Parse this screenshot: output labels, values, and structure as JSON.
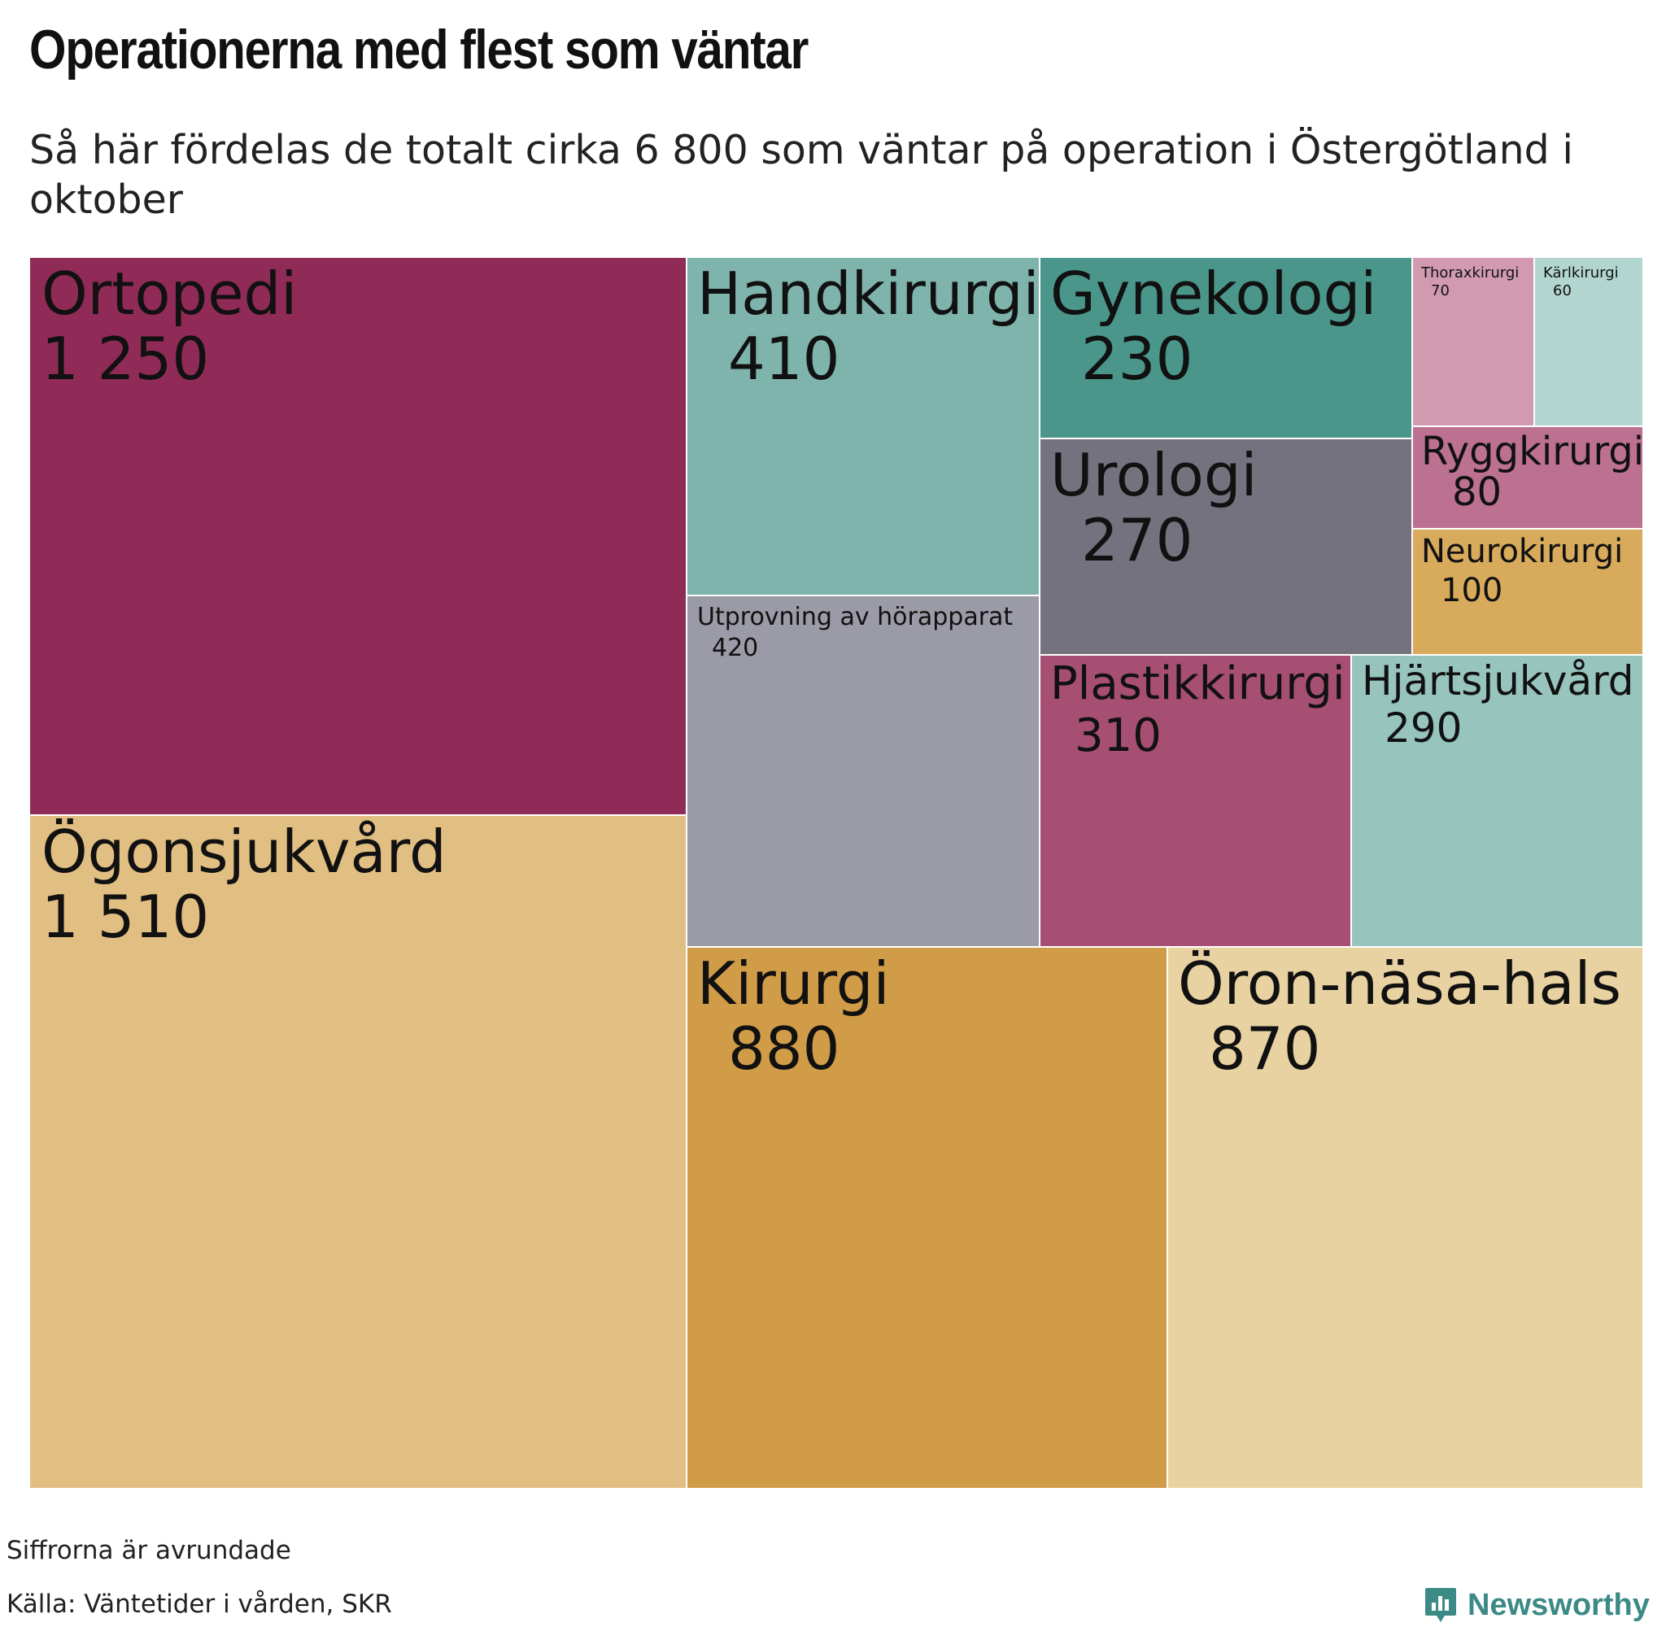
{
  "title": "Operationerna med flest som väntar",
  "subtitle": "Så här fördelas de totalt cirka 6 800 som väntar på operation i Östergötland i oktober",
  "footer": {
    "note": "Siffrorna är avrundade",
    "source": "Källa: Väntetider i vården, SKR",
    "brand": "Newsworthy"
  },
  "chart_data": {
    "type": "treemap",
    "title": "Operationerna med flest som väntar",
    "subtitle": "Så här fördelas de totalt cirka 6 800 som väntar på operation i Östergötland i oktober",
    "cells": [
      {
        "name": "Ortopedi",
        "value": 1250,
        "label": "1 250",
        "color": "#8f2b56"
      },
      {
        "name": "Ögonsjukvård",
        "value": 1510,
        "label": "1 510",
        "color": "#e1be82"
      },
      {
        "name": "Handkirurgi",
        "value": 410,
        "label": "410",
        "color": "#7fb4ad"
      },
      {
        "name": "Utprovning av hörapparat",
        "value": 420,
        "label": "420",
        "color": "#9b9aa7"
      },
      {
        "name": "Kirurgi",
        "value": 880,
        "label": "880",
        "color": "#d19c48"
      },
      {
        "name": "Gynekologi",
        "value": 230,
        "label": "230",
        "color": "#4a968a"
      },
      {
        "name": "Urologi",
        "value": 270,
        "label": "270",
        "color": "#74727e"
      },
      {
        "name": "Thoraxkirurgi",
        "value": 70,
        "label": "70",
        "color": "#d19ab0"
      },
      {
        "name": "Kärlkirurgi",
        "value": 60,
        "label": "60",
        "color": "#b2d6cf"
      },
      {
        "name": "Ryggkirurgi",
        "value": 80,
        "label": "80",
        "color": "#bd7190"
      },
      {
        "name": "Neurokirurgi",
        "value": 100,
        "label": "100",
        "color": "#d7aa5c"
      },
      {
        "name": "Plastikkirurgi",
        "value": 310,
        "label": "310",
        "color": "#a74f72"
      },
      {
        "name": "Hjärtsjukvård",
        "value": 290,
        "label": "290",
        "color": "#97c4bd"
      },
      {
        "name": "Öron-näsa-hals",
        "value": 870,
        "label": "870",
        "color": "#e8d2a1"
      }
    ]
  }
}
